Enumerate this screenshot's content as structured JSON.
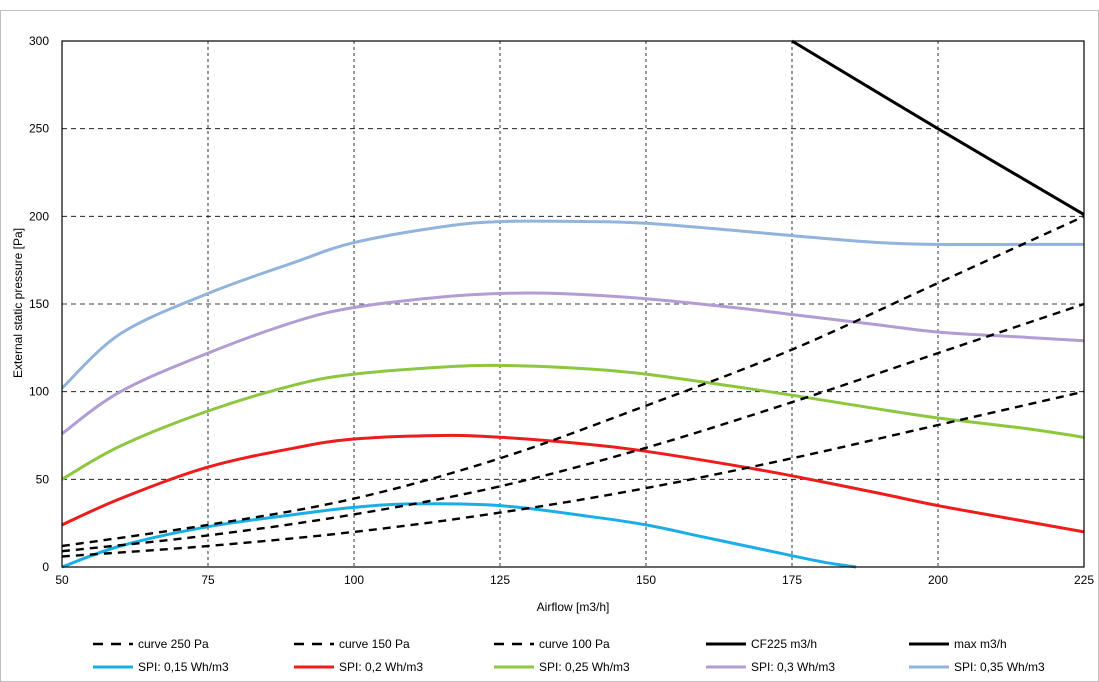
{
  "chart_data": {
    "type": "line",
    "title": "",
    "xlabel": "Airflow [m3/h]",
    "ylabel": "External static pressure [Pa]",
    "xlim": [
      50,
      225
    ],
    "ylim": [
      0,
      300
    ],
    "x_ticks": [
      50,
      75,
      100,
      125,
      150,
      175,
      200,
      225
    ],
    "y_ticks": [
      0,
      50,
      100,
      150,
      200,
      250,
      300
    ],
    "grid": true,
    "legend_position": "bottom",
    "series": [
      {
        "name": "curve 250 Pa",
        "color": "#000000",
        "dashed": true,
        "x": [
          50,
          75,
          100,
          125,
          150,
          175,
          200,
          225
        ],
        "y": [
          12,
          24,
          39,
          62,
          92,
          124,
          162,
          200
        ]
      },
      {
        "name": "curve 150 Pa",
        "color": "#000000",
        "dashed": true,
        "x": [
          50,
          75,
          100,
          125,
          150,
          175,
          200,
          225
        ],
        "y": [
          9,
          18,
          30,
          46,
          68,
          94,
          122,
          150
        ]
      },
      {
        "name": "curve 100 Pa",
        "color": "#000000",
        "dashed": true,
        "x": [
          50,
          75,
          100,
          125,
          150,
          175,
          200,
          225
        ],
        "y": [
          6,
          12,
          20,
          31,
          45,
          62,
          81,
          100
        ]
      },
      {
        "name": "CF225 m3/h",
        "color": "#000000",
        "dashed": false,
        "x": [
          175,
          200,
          225
        ],
        "y": [
          300,
          250,
          201
        ]
      },
      {
        "name": "max m3/h",
        "color": "#000000",
        "dashed": false,
        "x": [],
        "y": []
      },
      {
        "name": "SPI: 0,15 Wh/m3",
        "color": "#1aaee8",
        "dashed": false,
        "x": [
          50,
          60,
          75,
          90,
          100,
          110,
          125,
          140,
          150,
          160,
          170,
          180,
          186
        ],
        "y": [
          0,
          12,
          23,
          30,
          34,
          36,
          35,
          29,
          24,
          17,
          10,
          3,
          0
        ]
      },
      {
        "name": "SPI: 0,2 Wh/m3",
        "color": "#ee1c1c",
        "dashed": false,
        "x": [
          50,
          60,
          75,
          90,
          100,
          115,
          125,
          140,
          150,
          165,
          175,
          190,
          200,
          215,
          225
        ],
        "y": [
          24,
          39,
          57,
          68,
          73,
          75,
          74,
          70,
          66,
          58,
          52,
          42,
          35,
          26,
          20
        ]
      },
      {
        "name": "SPI: 0,25 Wh/m3",
        "color": "#8dc63f",
        "dashed": false,
        "x": [
          50,
          60,
          75,
          90,
          100,
          115,
          125,
          140,
          150,
          165,
          175,
          190,
          200,
          215,
          225
        ],
        "y": [
          50,
          69,
          89,
          104,
          110,
          114,
          115,
          113,
          110,
          103,
          98,
          90,
          85,
          79,
          74
        ]
      },
      {
        "name": "SPI: 0,3 Wh/m3",
        "color": "#b19cd3",
        "dashed": false,
        "x": [
          50,
          60,
          75,
          90,
          100,
          115,
          125,
          135,
          150,
          165,
          175,
          190,
          200,
          215,
          225
        ],
        "y": [
          76,
          100,
          122,
          140,
          148,
          154,
          156,
          156,
          153,
          148,
          144,
          138,
          134,
          131,
          129
        ]
      },
      {
        "name": "SPI: 0,35 Wh/m3",
        "color": "#92b4dc",
        "dashed": false,
        "x": [
          50,
          60,
          75,
          90,
          100,
          115,
          125,
          140,
          150,
          165,
          175,
          190,
          200,
          215,
          225
        ],
        "y": [
          102,
          133,
          156,
          174,
          185,
          194,
          197,
          197,
          196,
          192,
          189,
          185,
          184,
          184,
          184
        ]
      }
    ]
  }
}
